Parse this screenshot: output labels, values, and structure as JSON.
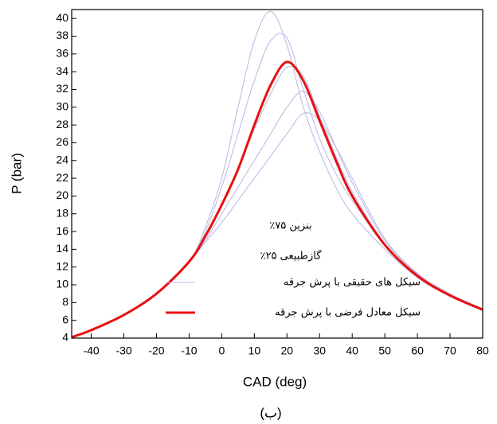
{
  "chart_data": {
    "type": "line",
    "xlabel": "CAD (deg)",
    "ylabel": "P (bar)",
    "caption": "(ب)",
    "annotations": [
      "بنزین ۷۵٪",
      "گازطبیعی ۲۵٪"
    ],
    "x": [
      -46,
      -40,
      -30,
      -20,
      -10,
      -5,
      0,
      5,
      10,
      15,
      20,
      25,
      30,
      35,
      40,
      50,
      60,
      70,
      80
    ],
    "series": [
      {
        "name": "سیکل های حقیقی با پرش جرقه",
        "color": "#b9b6e3",
        "width": 1,
        "values": [
          4.1,
          4.9,
          6.6,
          9.0,
          12.6,
          16.5,
          22,
          30,
          37.5,
          40.8,
          37,
          30,
          25,
          21,
          18,
          14,
          10.8,
          8.7,
          7.1
        ]
      },
      {
        "color": "#b9b6e3",
        "width": 1,
        "values": [
          4.1,
          4.9,
          6.6,
          9.0,
          12.6,
          16,
          21,
          27,
          33,
          37.5,
          37.8,
          32,
          26.5,
          22.5,
          19.5,
          14.5,
          11,
          8.8,
          7.2
        ]
      },
      {
        "color": "#b9b6e3",
        "width": 1,
        "values": [
          4.1,
          4.9,
          6.6,
          9.0,
          12.6,
          15.5,
          19,
          23,
          27.5,
          31.5,
          34.5,
          33.5,
          29,
          24.5,
          20.5,
          14.6,
          11,
          8.8,
          7.2
        ]
      },
      {
        "color": "#b9b6e3",
        "width": 1,
        "values": [
          4.1,
          4.9,
          6.6,
          9.0,
          12.6,
          15,
          18,
          21,
          24,
          27,
          30,
          31.8,
          29.5,
          25.5,
          21.5,
          15,
          11.2,
          8.9,
          7.3
        ]
      },
      {
        "color": "#b9b6e3",
        "width": 1,
        "values": [
          4.1,
          4.9,
          6.6,
          9.0,
          12.6,
          14.8,
          17,
          19.5,
          22,
          24.5,
          27,
          29.3,
          28.5,
          25.5,
          22,
          15.2,
          11.3,
          9,
          7.3
        ]
      },
      {
        "name": "سیکل معادل فرضی با پرش جرقه",
        "color": "#e8100f",
        "width": 3,
        "values": [
          4.1,
          4.9,
          6.6,
          9.0,
          12.6,
          15.5,
          19,
          23,
          28,
          32.5,
          35.1,
          33,
          28.5,
          24,
          20,
          14.5,
          11,
          8.8,
          7.2
        ]
      }
    ],
    "xlim": [
      -46,
      80
    ],
    "ylim": [
      4,
      41
    ],
    "xticks": [
      -40,
      -30,
      -20,
      -10,
      0,
      10,
      20,
      30,
      40,
      50,
      60,
      70,
      80
    ],
    "yticks": [
      4,
      6,
      8,
      10,
      12,
      14,
      16,
      18,
      20,
      22,
      24,
      26,
      28,
      30,
      32,
      34,
      36,
      38,
      40
    ]
  }
}
